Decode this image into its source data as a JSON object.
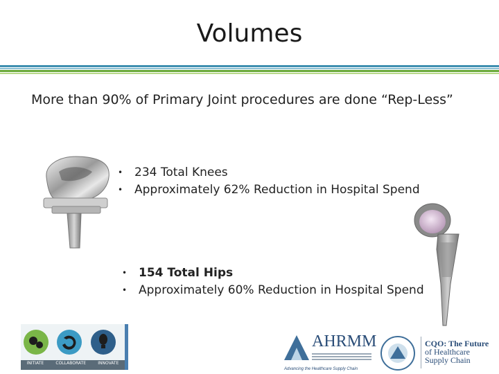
{
  "slide": {
    "title": "Volumes",
    "subtitle": "More than 90% of Primary Joint procedures are done “Rep-Less”",
    "rule_colors": [
      "#3f8fb0",
      "#8cc0d4",
      "#6aaa3a",
      "#b8d98a"
    ]
  },
  "knees": {
    "bullet_1": "234 Total Knees",
    "bullet_2": "Approximately 62% Reduction in Hospital Spend"
  },
  "hips": {
    "bullet_1": "154 Total Hips",
    "bullet_2": "Approximately 60% Reduction in Hospital Spend"
  },
  "logos": {
    "icon_labels": [
      "INITIATE",
      "COLLABORATE",
      "INNOVATE"
    ],
    "ahrmm_name": "AHRMM",
    "ahrmm_tagline": "Advancing the Healthcare Supply Chain",
    "cqo_line_1": "CQO: The Future",
    "cqo_line_2": "of Healthcare",
    "cqo_line_3": "Supply Chain"
  }
}
